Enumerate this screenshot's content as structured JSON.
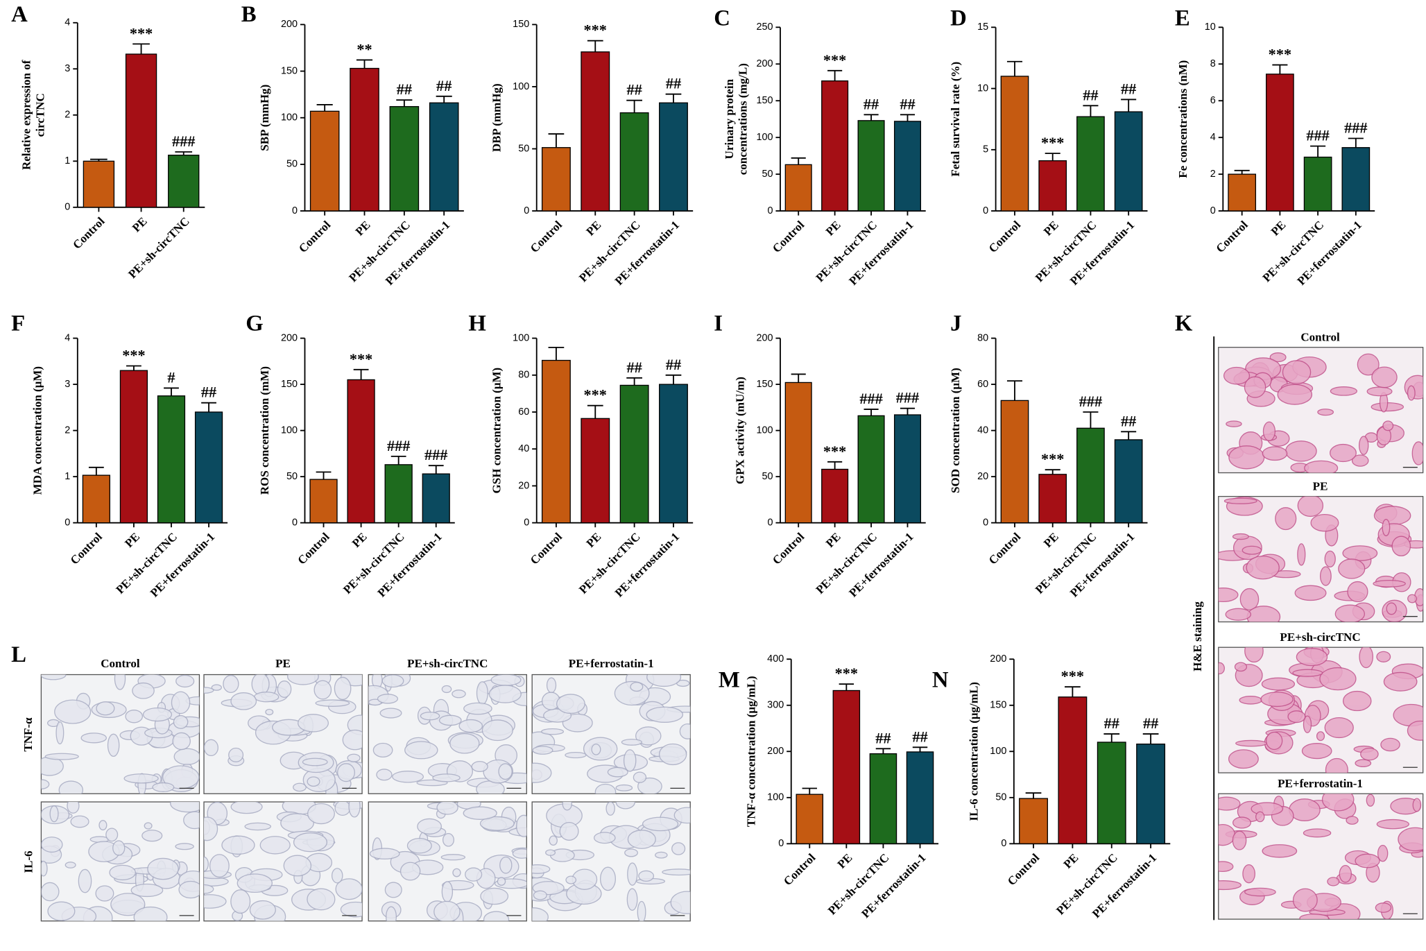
{
  "chart_data": [
    {
      "type": "bar",
      "panel": "A",
      "ylabel": [
        "Relative expression of",
        "circTNC"
      ],
      "categories": [
        "Control",
        "PE",
        "PE+sh-circTNC"
      ],
      "values": [
        1.0,
        3.32,
        1.13
      ],
      "errors": [
        0.04,
        0.22,
        0.07
      ],
      "colors": [
        "#c55a11",
        "#a50f15",
        "#1e6b1e"
      ],
      "significance": [
        null,
        "***",
        "###"
      ],
      "ylim": [
        0,
        4
      ],
      "yticks": [
        0,
        1,
        2,
        3,
        4
      ]
    },
    {
      "type": "bar",
      "panel": "B",
      "ylabel": [
        "SBP (mmHg)"
      ],
      "categories": [
        "Control",
        "PE",
        "PE+sh-circTNC",
        "PE+ferrostatin-1"
      ],
      "values": [
        107,
        153,
        112,
        116
      ],
      "errors": [
        7,
        9,
        7,
        7
      ],
      "colors": [
        "#c55a11",
        "#a50f15",
        "#1e6b1e",
        "#0b4a5f"
      ],
      "significance": [
        null,
        "**",
        "##",
        "##"
      ],
      "ylim": [
        0,
        200
      ],
      "yticks": [
        0,
        50,
        100,
        150,
        200
      ]
    },
    {
      "type": "bar",
      "ylabel": [
        "DBP (mmHg)"
      ],
      "categories": [
        "Control",
        "PE",
        "PE+sh-circTNC",
        "PE+ferrostatin-1"
      ],
      "values": [
        51,
        128,
        79,
        87
      ],
      "errors": [
        11,
        9,
        10,
        7
      ],
      "colors": [
        "#c55a11",
        "#a50f15",
        "#1e6b1e",
        "#0b4a5f"
      ],
      "significance": [
        null,
        "***",
        "##",
        "##"
      ],
      "ylim": [
        0,
        150
      ],
      "yticks": [
        0,
        50,
        100,
        150
      ]
    },
    {
      "type": "bar",
      "panel": "C",
      "ylabel": [
        "Urinary protein",
        "concentrations (mg/L)"
      ],
      "categories": [
        "Control",
        "PE",
        "PE+sh-circTNC",
        "PE+ferrostatin-1"
      ],
      "values": [
        63,
        177,
        123,
        122
      ],
      "errors": [
        9,
        14,
        8,
        9
      ],
      "colors": [
        "#c55a11",
        "#a50f15",
        "#1e6b1e",
        "#0b4a5f"
      ],
      "significance": [
        null,
        "***",
        "##",
        "##"
      ],
      "ylim": [
        0,
        250
      ],
      "yticks": [
        0,
        50,
        100,
        150,
        200,
        250
      ]
    },
    {
      "type": "bar",
      "panel": "D",
      "ylabel": [
        "Fetal survival rate (%)"
      ],
      "categories": [
        "Control",
        "PE",
        "PE+sh-circTNC",
        "PE+ferrostatin-1"
      ],
      "values": [
        11.0,
        4.1,
        7.7,
        8.1
      ],
      "errors": [
        1.2,
        0.6,
        0.9,
        1.0
      ],
      "colors": [
        "#c55a11",
        "#a50f15",
        "#1e6b1e",
        "#0b4a5f"
      ],
      "significance": [
        null,
        "***",
        "##",
        "##"
      ],
      "ylim": [
        0,
        15
      ],
      "yticks": [
        0,
        5,
        10,
        15
      ]
    },
    {
      "type": "bar",
      "panel": "E",
      "ylabel": [
        "Fe concentrations (nM)"
      ],
      "categories": [
        "Control",
        "PE",
        "PE+sh-circTNC",
        "PE+ferrostatin-1"
      ],
      "values": [
        2.0,
        7.45,
        2.93,
        3.45
      ],
      "errors": [
        0.2,
        0.5,
        0.6,
        0.5
      ],
      "colors": [
        "#c55a11",
        "#a50f15",
        "#1e6b1e",
        "#0b4a5f"
      ],
      "significance": [
        null,
        "***",
        "###",
        "###"
      ],
      "ylim": [
        0,
        10
      ],
      "yticks": [
        0,
        2,
        4,
        6,
        8,
        10
      ]
    },
    {
      "type": "bar",
      "panel": "F",
      "ylabel": [
        "MDA concentration (μM)"
      ],
      "categories": [
        "Control",
        "PE",
        "PE+sh-circTNC",
        "PE+ferrostatin-1"
      ],
      "values": [
        1.03,
        3.3,
        2.75,
        2.4
      ],
      "errors": [
        0.17,
        0.1,
        0.17,
        0.2
      ],
      "colors": [
        "#c55a11",
        "#a50f15",
        "#1e6b1e",
        "#0b4a5f"
      ],
      "significance": [
        null,
        "***",
        "#",
        "##"
      ],
      "ylim": [
        0,
        4
      ],
      "yticks": [
        0,
        1,
        2,
        3,
        4
      ]
    },
    {
      "type": "bar",
      "panel": "G",
      "ylabel": [
        "ROS concentration (mM)"
      ],
      "categories": [
        "Control",
        "PE",
        "PE+sh-circTNC",
        "PE+ferrostatin-1"
      ],
      "values": [
        47,
        155,
        63,
        53
      ],
      "errors": [
        8,
        11,
        9,
        9
      ],
      "colors": [
        "#c55a11",
        "#a50f15",
        "#1e6b1e",
        "#0b4a5f"
      ],
      "significance": [
        null,
        "***",
        "###",
        "###"
      ],
      "ylim": [
        0,
        200
      ],
      "yticks": [
        0,
        50,
        100,
        150,
        200
      ]
    },
    {
      "type": "bar",
      "panel": "H",
      "ylabel": [
        "GSH concentration (μM)"
      ],
      "categories": [
        "Control",
        "PE",
        "PE+sh-circTNC",
        "PE+ferrostatin-1"
      ],
      "values": [
        88,
        56.5,
        74.5,
        75
      ],
      "errors": [
        7,
        7,
        4,
        5
      ],
      "colors": [
        "#c55a11",
        "#a50f15",
        "#1e6b1e",
        "#0b4a5f"
      ],
      "significance": [
        null,
        "***",
        "##",
        "##"
      ],
      "ylim": [
        0,
        100
      ],
      "yticks": [
        0,
        20,
        40,
        60,
        80,
        100
      ]
    },
    {
      "type": "bar",
      "panel": "I",
      "ylabel": [
        "GPX activity (mU/m)"
      ],
      "categories": [
        "Control",
        "PE",
        "PE+sh-circTNC",
        "PE+ferrostatin-1"
      ],
      "values": [
        152,
        58,
        116,
        117
      ],
      "errors": [
        9,
        8,
        7,
        7
      ],
      "colors": [
        "#c55a11",
        "#a50f15",
        "#1e6b1e",
        "#0b4a5f"
      ],
      "significance": [
        null,
        "***",
        "###",
        "###"
      ],
      "ylim": [
        0,
        200
      ],
      "yticks": [
        0,
        50,
        100,
        150,
        200
      ]
    },
    {
      "type": "bar",
      "panel": "J",
      "ylabel": [
        "SOD concentration (μM)"
      ],
      "categories": [
        "Control",
        "PE",
        "PE+sh-circTNC",
        "PE+ferrostatin-1"
      ],
      "values": [
        53,
        21,
        41,
        36
      ],
      "errors": [
        8.5,
        2,
        7,
        3.5
      ],
      "colors": [
        "#c55a11",
        "#a50f15",
        "#1e6b1e",
        "#0b4a5f"
      ],
      "significance": [
        null,
        "***",
        "###",
        "##"
      ],
      "ylim": [
        0,
        80
      ],
      "yticks": [
        0,
        20,
        40,
        60,
        80
      ]
    },
    {
      "type": "bar",
      "panel": "M",
      "ylabel": [
        "TNF-α concentration (μg/mL)"
      ],
      "categories": [
        "Control",
        "PE",
        "PE+sh-circTNC",
        "PE+ferrostatin-1"
      ],
      "values": [
        107,
        332,
        195,
        199
      ],
      "errors": [
        13,
        14,
        11,
        10
      ],
      "colors": [
        "#c55a11",
        "#a50f15",
        "#1e6b1e",
        "#0b4a5f"
      ],
      "significance": [
        null,
        "***",
        "##",
        "##"
      ],
      "ylim": [
        0,
        400
      ],
      "yticks": [
        0,
        100,
        200,
        300,
        400
      ]
    },
    {
      "type": "bar",
      "panel": "N",
      "ylabel": [
        "IL-6 concentration (μg/mL)"
      ],
      "categories": [
        "Control",
        "PE",
        "PE+sh-circTNC",
        "PE+ferrostatin-1"
      ],
      "values": [
        49,
        159,
        110,
        108
      ],
      "errors": [
        6,
        11,
        9,
        11
      ],
      "colors": [
        "#c55a11",
        "#a50f15",
        "#1e6b1e",
        "#0b4a5f"
      ],
      "significance": [
        null,
        "***",
        "##",
        "##"
      ],
      "ylim": [
        0,
        200
      ],
      "yticks": [
        0,
        50,
        100,
        150,
        200
      ]
    }
  ],
  "figures": {
    "L": {
      "panel": "L",
      "columns": [
        "Control",
        "PE",
        "PE+sh-circTNC",
        "PE+ferrostatin-1"
      ],
      "rows": [
        "TNF-α",
        "IL-6"
      ]
    },
    "K": {
      "panel": "K",
      "label": "H&E staining",
      "images": [
        "Control",
        "PE",
        "PE+sh-circTNC",
        "PE+ferrostatin-1"
      ]
    }
  }
}
